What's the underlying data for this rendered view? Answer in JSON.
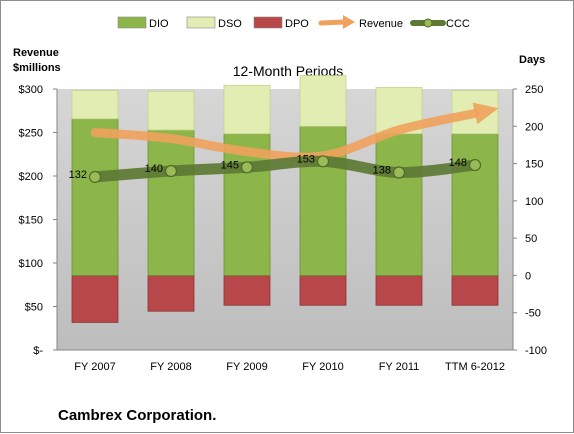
{
  "chart_data": {
    "type": "bar",
    "title": "12-Month Periods",
    "company": "Cambrex Corporation.",
    "left_axis": {
      "label_line1": "Revenue",
      "label_line2": "$millions",
      "range": [
        0,
        300
      ],
      "ticks": [
        "$-",
        "$50",
        "$100",
        "$150",
        "$200",
        "$250",
        "$300"
      ]
    },
    "right_axis": {
      "label": "Days",
      "range": [
        -100,
        250
      ],
      "ticks": [
        "-100",
        "-50",
        "0",
        "50",
        "100",
        "150",
        "200",
        "250"
      ]
    },
    "categories": [
      "FY 2007",
      "FY 2008",
      "FY 2009",
      "FY 2010",
      "FY 2011",
      "TTM 6-2012"
    ],
    "series": [
      {
        "name": "DIO",
        "axis": "days",
        "color": "#8db64a",
        "values": [
          210,
          195,
          190,
          200,
          190,
          190
        ]
      },
      {
        "name": "DSO",
        "axis": "days",
        "color": "#e2edb3",
        "values": [
          38,
          52,
          65,
          68,
          62,
          58
        ]
      },
      {
        "name": "DPO",
        "axis": "days",
        "color": "#b8474a",
        "values": [
          -63,
          -48,
          -40,
          -40,
          -40,
          -40
        ]
      },
      {
        "name": "Revenue",
        "axis": "revenue",
        "color": "#f0a15c",
        "values": [
          250,
          243,
          228,
          223,
          253,
          272
        ]
      },
      {
        "name": "CCC",
        "axis": "days",
        "color": "#5d7a34",
        "values": [
          132,
          140,
          145,
          153,
          138,
          148
        ],
        "labels": [
          "132",
          "140",
          "145",
          "153",
          "138",
          "148"
        ]
      }
    ],
    "legend_position": "top",
    "grid": false
  }
}
